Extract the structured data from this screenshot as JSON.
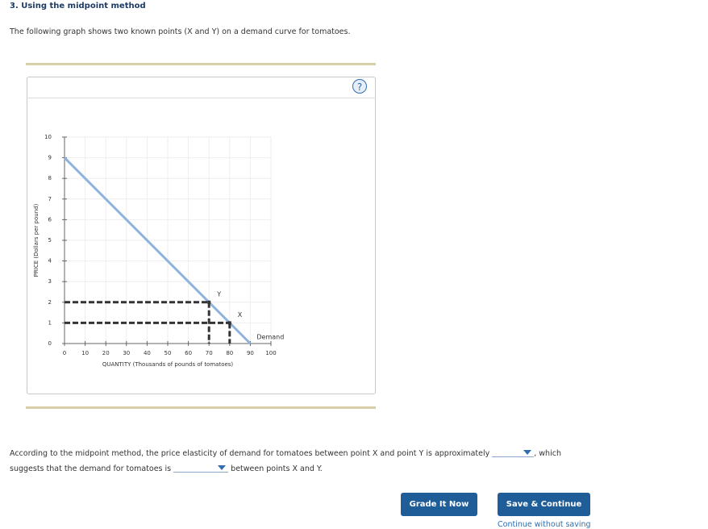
{
  "header": {
    "title": "3. Using the midpoint method"
  },
  "intro": "The following graph shows two known points (X and Y) on a demand curve for tomatoes.",
  "help_icon": "?",
  "chart_data": {
    "type": "line",
    "xlabel": "QUANTITY (Thousands of pounds of tomatoes)",
    "ylabel": "PRICE (Dollars per pound)",
    "xlim": [
      0,
      100
    ],
    "ylim": [
      0,
      10
    ],
    "xticks": [
      0,
      10,
      20,
      30,
      40,
      50,
      60,
      70,
      80,
      90,
      100
    ],
    "yticks": [
      0,
      1,
      2,
      3,
      4,
      5,
      6,
      7,
      8,
      9,
      10
    ],
    "grid": true,
    "series": [
      {
        "name": "Demand",
        "color": "#8fb3dc",
        "x": [
          0,
          90
        ],
        "values": [
          9,
          0
        ]
      }
    ],
    "points": [
      {
        "name": "Y",
        "x": 70,
        "y": 2
      },
      {
        "name": "X",
        "x": 80,
        "y": 1
      }
    ]
  },
  "question": {
    "part1": "According to the midpoint method, the price elasticity of demand for tomatoes between point X and point Y is approximately",
    "part2": ", which",
    "part3": "suggests that the demand for tomatoes is",
    "part4": "between points X and Y."
  },
  "buttons": [
    "Grade It Now",
    "Save & Continue"
  ],
  "link": "Continue without saving"
}
